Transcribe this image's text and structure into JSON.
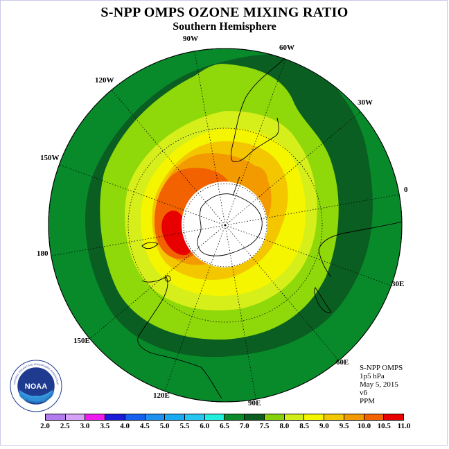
{
  "title": "S-NPP OMPS OZONE MIXING RATIO",
  "subtitle": "Southern Hemisphere",
  "lon_labels": {
    "w90": "90W",
    "w60": "60W",
    "w120": "120W",
    "w30": "30W",
    "w150": "150W",
    "zero": "0",
    "e180": "180",
    "e30": "30E",
    "e150": "150E",
    "e60": "60E",
    "e120": "120E",
    "e90": "90E"
  },
  "info": {
    "instrument": "S-NPP OMPS",
    "level": "1p5 hPa",
    "date": "May 5, 2015",
    "version": "v6",
    "units": "PPM"
  },
  "logo": {
    "text": "NOAA",
    "ring_top": "NATIONAL OCEANIC AND ATMOSPHERIC ADMINISTRATION",
    "ring_bottom": "U.S. DEPARTMENT OF COMMERCE"
  },
  "colorbar": {
    "ticks": [
      "2.0",
      "2.5",
      "3.0",
      "3.5",
      "4.0",
      "4.5",
      "5.0",
      "5.5",
      "6.0",
      "6.5",
      "7.0",
      "7.5",
      "8.0",
      "8.5",
      "9.0",
      "9.5",
      "10.0",
      "10.5",
      "11.0"
    ],
    "colors": [
      "#b27cf0",
      "#d6a2f7",
      "#ee1cee",
      "#1b1bd9",
      "#1560ee",
      "#1e90f0",
      "#18aaf2",
      "#25c6f2",
      "#22eedd",
      "#0b8a2a",
      "#0a5e21",
      "#86d10a",
      "#d2ee18",
      "#f5f500",
      "#f2c800",
      "#f29b00",
      "#f26200",
      "#e80000",
      "#8b5a2b"
    ]
  },
  "map_colors": {
    "c_65": "#088a2b",
    "c_70": "#0a5e21",
    "c_75": "#8fd80a",
    "c_80": "#d6ef1a",
    "c_85": "#f5f500",
    "c_90": "#f4c600",
    "c_95": "#f39a00",
    "c_100": "#f26200",
    "c_105": "#e80000",
    "polar_cap": "#ffffff"
  }
}
